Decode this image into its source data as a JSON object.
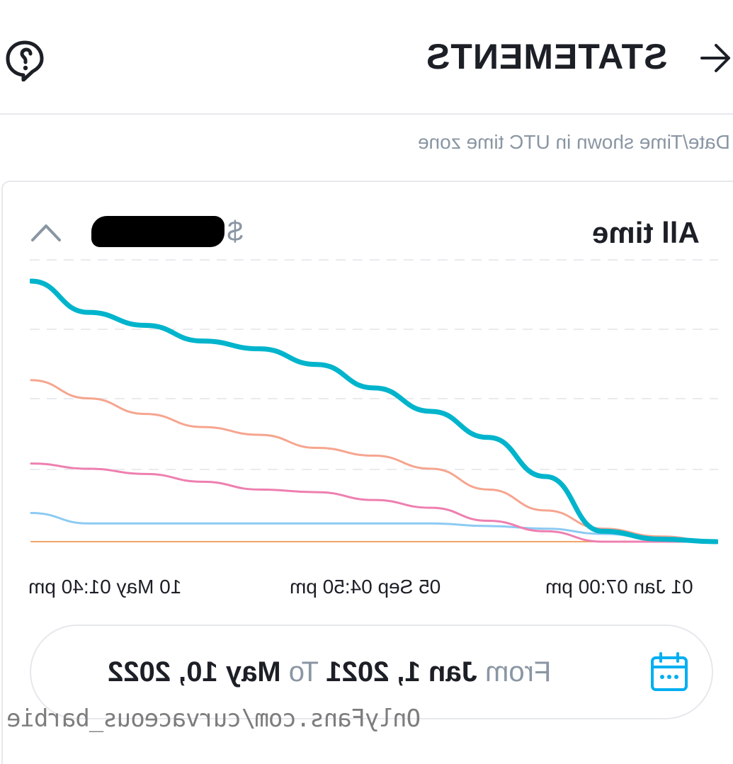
{
  "header": {
    "title": "STATEMENTS",
    "back_icon": "arrow-left-icon",
    "help_icon": "help-chat-icon"
  },
  "timezone_note": "Date/Time shown in UTC time zone",
  "card": {
    "period": "All time",
    "currency_symbol": "$",
    "amount_redacted": true,
    "collapse_icon": "chevron-up-icon"
  },
  "chart_data": {
    "type": "line",
    "x_ticks": [
      "01 Jan 07:00 pm",
      "05 Sep 04:50 pm",
      "10 May 01:40 pm"
    ],
    "series": [
      {
        "color": "#00b4cc",
        "values": [
          100,
          88,
          83,
          77,
          74,
          68,
          59,
          50,
          40,
          25,
          4,
          1,
          0
        ]
      },
      {
        "color": "#f6a58f",
        "values": [
          62,
          55,
          49,
          44,
          41,
          36,
          33,
          28,
          20,
          12,
          5,
          2,
          0
        ]
      },
      {
        "color": "#ee7fb0",
        "values": [
          30,
          28,
          26,
          23,
          20,
          19,
          16,
          13,
          8,
          4,
          0,
          0,
          0
        ]
      },
      {
        "color": "#8ccaf3",
        "values": [
          11,
          7,
          7,
          7,
          7,
          7,
          7,
          7,
          6,
          5,
          3,
          1,
          0
        ]
      },
      {
        "color": "#f2a467",
        "values": [
          0,
          0,
          0,
          0,
          0,
          0,
          0,
          0,
          0,
          0,
          0,
          0,
          0
        ]
      }
    ],
    "grid": true
  },
  "date_range": {
    "from_label": "From",
    "from_value": "Jan 1, 2021",
    "to_label": "To",
    "to_value": "May 10, 2022",
    "calendar_icon": "calendar-icon"
  },
  "watermark": "OnlyFans.com/curvaceous_barbie"
}
